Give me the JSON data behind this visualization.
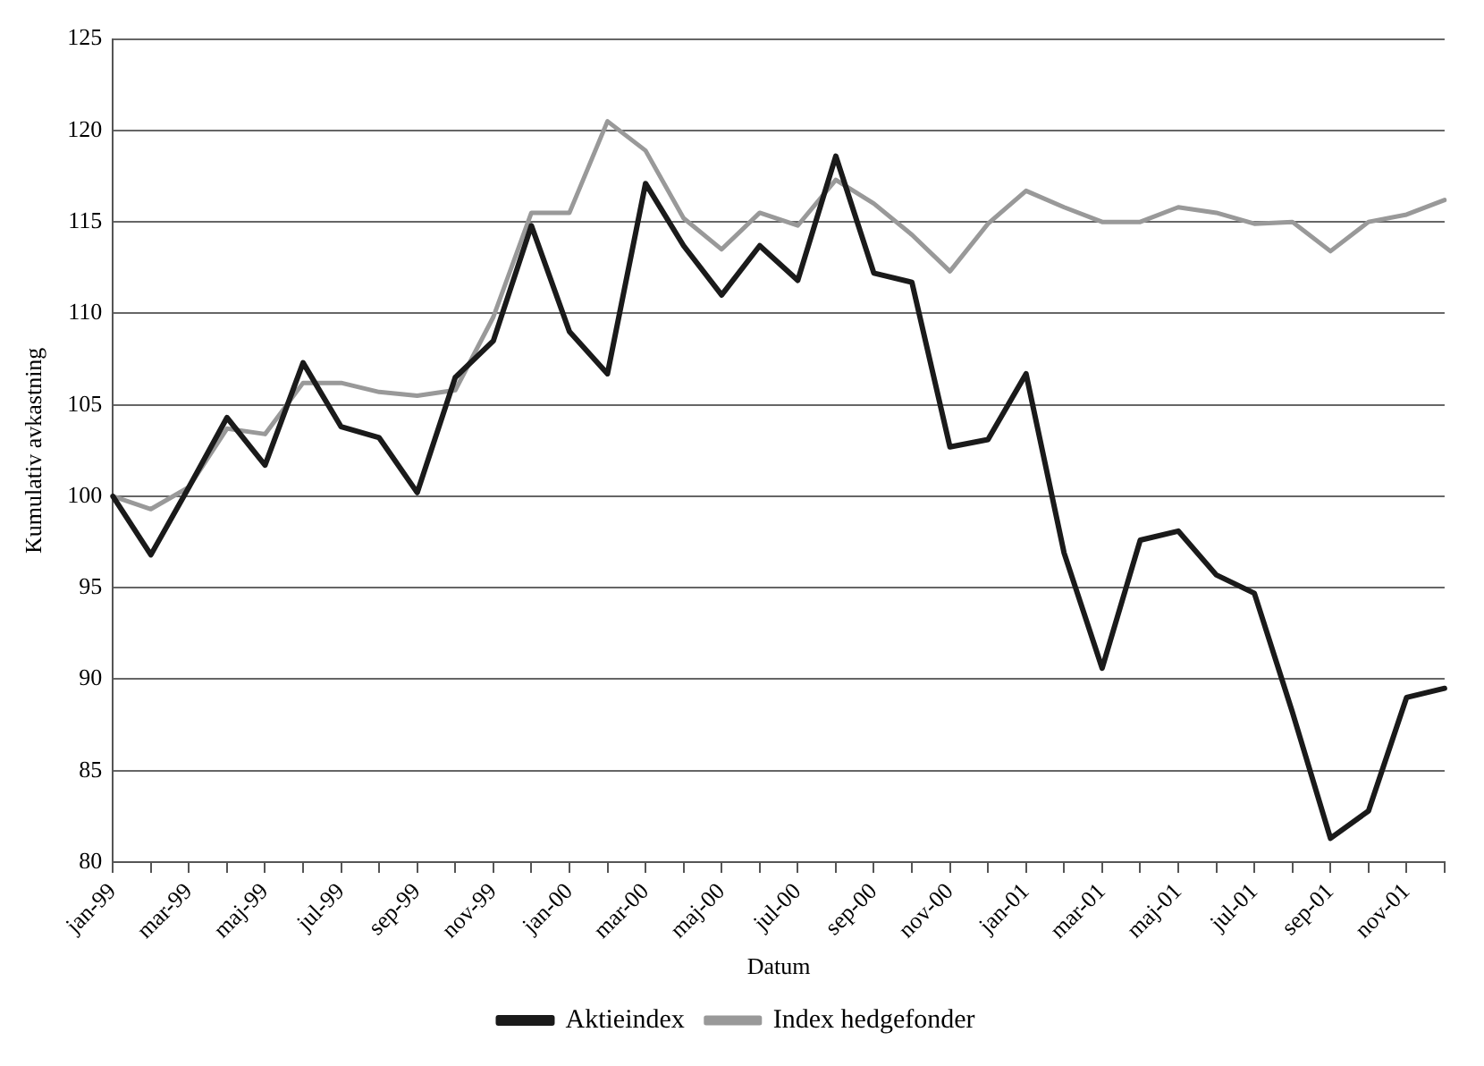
{
  "chart_data": {
    "type": "line",
    "xlabel": "Datum",
    "ylabel": "Kumulativ avkastning",
    "categories": [
      "jan-99",
      null,
      "mar-99",
      null,
      "maj-99",
      null,
      "jul-99",
      null,
      "sep-99",
      null,
      "nov-99",
      null,
      "jan-00",
      null,
      "mar-00",
      null,
      "maj-00",
      null,
      "jul-00",
      null,
      "sep-00",
      null,
      "nov-00",
      null,
      "jan-01",
      null,
      "mar-01",
      null,
      "maj-01",
      null,
      "jul-01",
      null,
      "sep-01",
      null,
      "nov-01",
      null
    ],
    "series": [
      {
        "name": "Aktieindex",
        "color": "#1a1a1a",
        "values": [
          100,
          96.8,
          100.5,
          104.3,
          101.7,
          107.3,
          103.8,
          103.2,
          100.2,
          106.5,
          108.5,
          114.8,
          109,
          106.7,
          117.1,
          113.7,
          111,
          113.7,
          111.8,
          118.6,
          112.2,
          111.7,
          102.7,
          103.1,
          106.7,
          96.9,
          90.6,
          97.6,
          98.1,
          95.7,
          94.7,
          88.2,
          81.3,
          82.8,
          89.0,
          89.5
        ]
      },
      {
        "name": "Index hedgefonder",
        "color": "#999999",
        "values": [
          100,
          99.3,
          100.5,
          103.7,
          103.4,
          106.2,
          106.2,
          105.7,
          105.5,
          105.8,
          109.8,
          115.5,
          115.5,
          120.5,
          118.9,
          115.2,
          113.5,
          115.5,
          114.8,
          117.3,
          116.0,
          114.3,
          112.3,
          114.9,
          116.7,
          115.8,
          115.0,
          115.0,
          115.8,
          115.5,
          114.9,
          115.0,
          113.4,
          115.0,
          115.4,
          116.2
        ]
      }
    ],
    "ylim": [
      80,
      125
    ],
    "yticks": [
      80,
      85,
      90,
      95,
      100,
      105,
      110,
      115,
      120,
      125
    ],
    "grid": "y",
    "legend": "bottom",
    "marker": "none",
    "line_style": "solid"
  }
}
